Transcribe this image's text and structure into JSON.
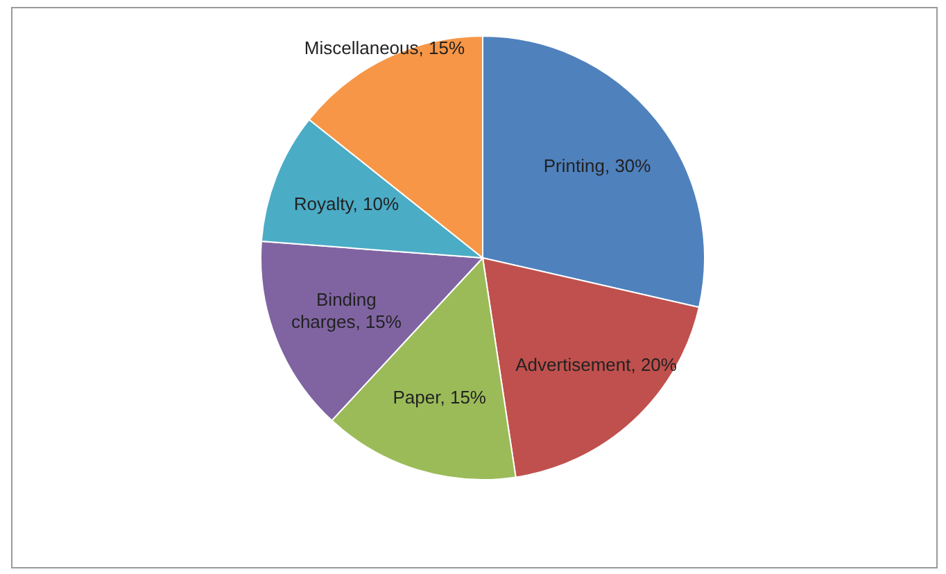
{
  "chart_data": {
    "type": "pie",
    "categories": [
      "Printing",
      "Advertisement",
      "Paper",
      "Binding charges",
      "Royalty",
      "Miscellaneous"
    ],
    "values": [
      30,
      20,
      15,
      15,
      10,
      15
    ],
    "value_labels": [
      "30%",
      "20%",
      "15%",
      "15%",
      "10%",
      "15%"
    ],
    "colors": [
      "#4f81bd",
      "#c0504d",
      "#9bbb59",
      "#8064a2",
      "#4bacc6",
      "#f79646"
    ]
  }
}
